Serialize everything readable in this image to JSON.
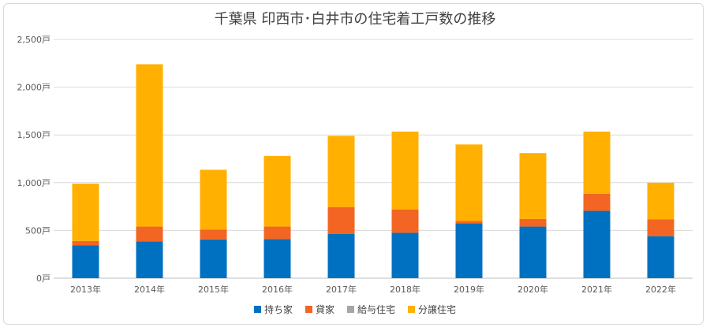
{
  "chart_data": {
    "type": "bar",
    "stacked": true,
    "title": "千葉県 印西市･白井市の住宅着工戸数の推移",
    "categories": [
      "2013年",
      "2014年",
      "2015年",
      "2016年",
      "2017年",
      "2018年",
      "2019年",
      "2020年",
      "2021年",
      "2022年"
    ],
    "series": [
      {
        "name": "持ち家",
        "color": "#0070c0",
        "values": [
          345,
          385,
          405,
          410,
          465,
          475,
          575,
          540,
          705,
          440
        ]
      },
      {
        "name": "貸家",
        "color": "#f26522",
        "values": [
          45,
          155,
          105,
          130,
          280,
          245,
          25,
          80,
          180,
          175
        ]
      },
      {
        "name": "給与住宅",
        "color": "#a5a5a5",
        "values": [
          0,
          0,
          0,
          0,
          0,
          0,
          0,
          0,
          0,
          0
        ]
      },
      {
        "name": "分譲住宅",
        "color": "#ffb000",
        "values": [
          600,
          1700,
          625,
          740,
          745,
          815,
          800,
          690,
          650,
          385
        ]
      }
    ],
    "y_ticks": [
      "0戸",
      "500戸",
      "1,000戸",
      "1,500戸",
      "2,000戸",
      "2,500戸"
    ],
    "ylim": [
      0,
      2500
    ],
    "grid": true,
    "legend_position": "bottom"
  }
}
